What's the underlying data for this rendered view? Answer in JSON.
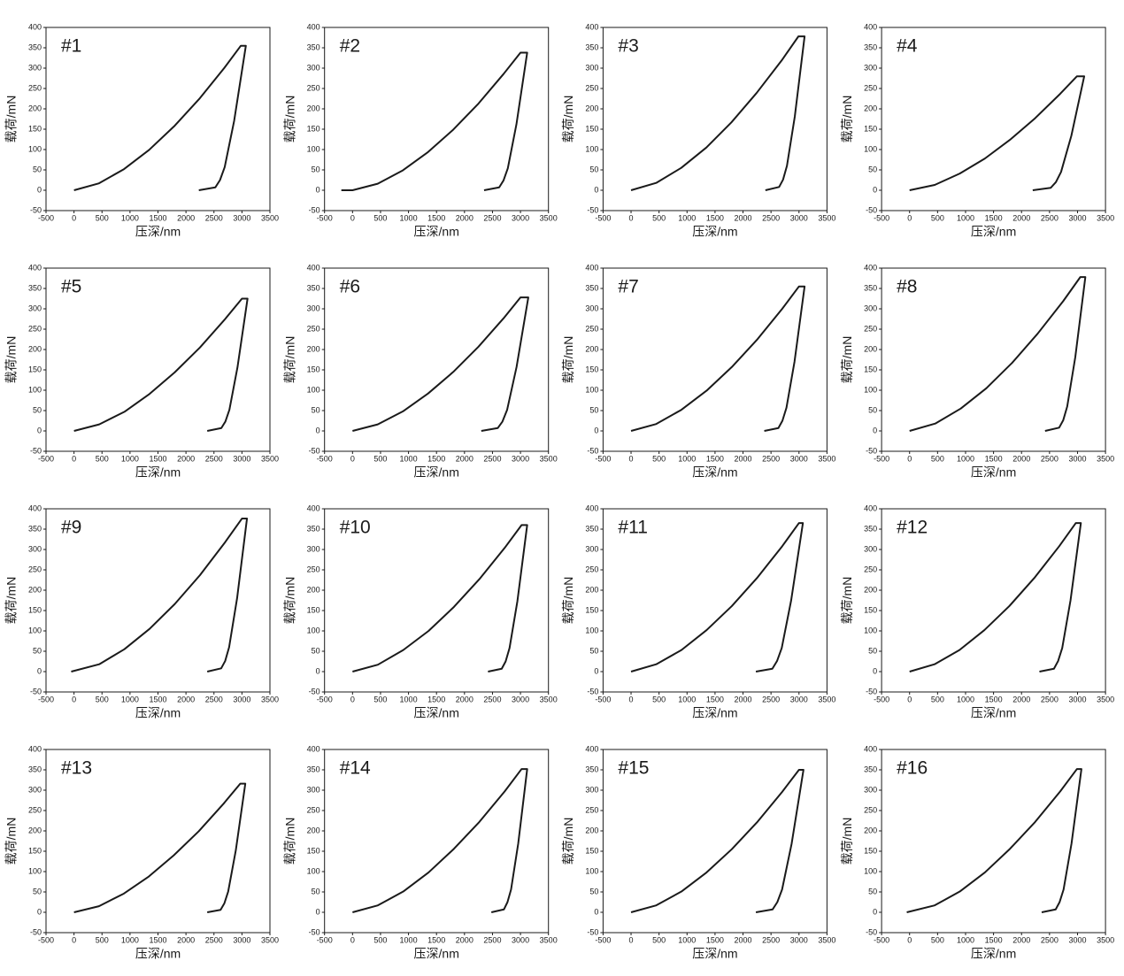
{
  "chart_data": [
    {
      "type": "line",
      "title": "#1",
      "x_label": "压深/nm",
      "y_label": "载荷/mN",
      "color": "#1a1a1a",
      "xlim": [
        -500,
        3500
      ],
      "ylim": [
        -50,
        400
      ],
      "xticks": [
        -500,
        0,
        500,
        1000,
        1500,
        2000,
        2500,
        3000,
        3500
      ],
      "yticks": [
        -50,
        0,
        50,
        100,
        150,
        200,
        250,
        300,
        350,
        400
      ],
      "x": [
        0,
        447,
        894,
        1341,
        1788,
        2235,
        2682,
        2980,
        3070,
        2860,
        2692,
        2608,
        2524,
        2230
      ],
      "values": [
        0,
        17,
        52,
        99,
        157,
        224,
        300,
        355,
        355,
        170,
        57,
        25,
        7,
        0
      ]
    },
    {
      "type": "line",
      "title": "#2",
      "x_label": "压深/nm",
      "y_label": "载荷/mN",
      "color": "#1a1a1a",
      "xlim": [
        -500,
        3500
      ],
      "ylim": [
        -50,
        400
      ],
      "xticks": [
        -500,
        0,
        500,
        1000,
        1500,
        2000,
        2500,
        3000,
        3500
      ],
      "yticks": [
        -50,
        0,
        50,
        100,
        150,
        200,
        250,
        300,
        350,
        400
      ],
      "x": [
        -200,
        0,
        450,
        900,
        1350,
        1800,
        2250,
        2700,
        3000,
        3120,
        2928,
        2774,
        2697,
        2620,
        2350
      ],
      "values": [
        0,
        0,
        16,
        49,
        94,
        149,
        213,
        286,
        338,
        338,
        162,
        54,
        24,
        7,
        0
      ]
    },
    {
      "type": "line",
      "title": "#3",
      "x_label": "压深/nm",
      "y_label": "载荷/mN",
      "color": "#1a1a1a",
      "xlim": [
        -500,
        3500
      ],
      "ylim": [
        -50,
        400
      ],
      "xticks": [
        -500,
        0,
        500,
        1000,
        1500,
        2000,
        2500,
        3000,
        3500
      ],
      "yticks": [
        -50,
        0,
        50,
        100,
        150,
        200,
        250,
        300,
        350,
        400
      ],
      "x": [
        0,
        449,
        897,
        1346,
        1794,
        2243,
        2691,
        2990,
        3100,
        2925,
        2785,
        2715,
        2645,
        2400
      ],
      "values": [
        0,
        18,
        55,
        105,
        167,
        239,
        319,
        378,
        378,
        181,
        60,
        26,
        8,
        0
      ]
    },
    {
      "type": "line",
      "title": "#4",
      "x_label": "压深/nm",
      "y_label": "载荷/mN",
      "color": "#1a1a1a",
      "xlim": [
        -500,
        3500
      ],
      "ylim": [
        -50,
        400
      ],
      "xticks": [
        -500,
        0,
        500,
        1000,
        1500,
        2000,
        2500,
        3000,
        3500
      ],
      "yticks": [
        -50,
        0,
        50,
        100,
        150,
        200,
        250,
        300,
        350,
        400
      ],
      "x": [
        0,
        449,
        897,
        1346,
        1794,
        2243,
        2691,
        2990,
        3120,
        2890,
        2706,
        2614,
        2522,
        2200
      ],
      "values": [
        0,
        13,
        41,
        78,
        124,
        177,
        237,
        280,
        280,
        134,
        45,
        20,
        6,
        0
      ]
    },
    {
      "type": "line",
      "title": "#5",
      "x_label": "压深/nm",
      "y_label": "载荷/mN",
      "color": "#1a1a1a",
      "xlim": [
        -500,
        3500
      ],
      "ylim": [
        -50,
        400
      ],
      "xticks": [
        -500,
        0,
        500,
        1000,
        1500,
        2000,
        2500,
        3000,
        3500
      ],
      "yticks": [
        -50,
        0,
        50,
        100,
        150,
        200,
        250,
        300,
        350,
        400
      ],
      "x": [
        0,
        450,
        900,
        1350,
        1800,
        2250,
        2700,
        3000,
        3100,
        2920,
        2776,
        2704,
        2632,
        2380
      ],
      "values": [
        0,
        16,
        47,
        91,
        144,
        205,
        275,
        325,
        325,
        156,
        52,
        23,
        7,
        0
      ]
    },
    {
      "type": "line",
      "title": "#6",
      "x_label": "压深/nm",
      "y_label": "载荷/mN",
      "color": "#1a1a1a",
      "xlim": [
        -500,
        3500
      ],
      "ylim": [
        -50,
        400
      ],
      "xticks": [
        -500,
        0,
        500,
        1000,
        1500,
        2000,
        2500,
        3000,
        3500
      ],
      "yticks": [
        -50,
        0,
        50,
        100,
        150,
        200,
        250,
        300,
        350,
        400
      ],
      "x": [
        0,
        450,
        900,
        1350,
        1800,
        2250,
        2700,
        3000,
        3140,
        2930,
        2762,
        2678,
        2594,
        2300
      ],
      "values": [
        0,
        16,
        48,
        92,
        145,
        207,
        277,
        328,
        328,
        157,
        52,
        23,
        7,
        0
      ]
    },
    {
      "type": "line",
      "title": "#7",
      "x_label": "压深/nm",
      "y_label": "载荷/mN",
      "color": "#1a1a1a",
      "xlim": [
        -500,
        3500
      ],
      "ylim": [
        -50,
        400
      ],
      "xticks": [
        -500,
        0,
        500,
        1000,
        1500,
        2000,
        2500,
        3000,
        3500
      ],
      "yticks": [
        -50,
        0,
        50,
        100,
        150,
        200,
        250,
        300,
        350,
        400
      ],
      "x": [
        0,
        450,
        900,
        1350,
        1800,
        2250,
        2700,
        3000,
        3100,
        2920,
        2776,
        2704,
        2632,
        2380
      ],
      "values": [
        0,
        17,
        52,
        99,
        157,
        224,
        300,
        355,
        355,
        170,
        57,
        25,
        7,
        0
      ]
    },
    {
      "type": "line",
      "title": "#8",
      "x_label": "压深/nm",
      "y_label": "载荷/mN",
      "color": "#1a1a1a",
      "xlim": [
        -500,
        3500
      ],
      "ylim": [
        -50,
        400
      ],
      "xticks": [
        -500,
        0,
        500,
        1000,
        1500,
        2000,
        2500,
        3000,
        3500
      ],
      "yticks": [
        -50,
        0,
        50,
        100,
        150,
        200,
        250,
        300,
        350,
        400
      ],
      "x": [
        0,
        458,
        915,
        1373,
        1830,
        2288,
        2745,
        3050,
        3140,
        2960,
        2816,
        2744,
        2672,
        2420
      ],
      "values": [
        0,
        18,
        55,
        105,
        167,
        239,
        319,
        378,
        378,
        181,
        60,
        26,
        8,
        0
      ]
    },
    {
      "type": "line",
      "title": "#9",
      "x_label": "压深/nm",
      "y_label": "载荷/mN",
      "color": "#1a1a1a",
      "xlim": [
        -500,
        3500
      ],
      "ylim": [
        -50,
        400
      ],
      "xticks": [
        -500,
        0,
        500,
        1000,
        1500,
        2000,
        2500,
        3000,
        3500
      ],
      "yticks": [
        -50,
        0,
        50,
        100,
        150,
        200,
        250,
        300,
        350,
        400
      ],
      "x": [
        -50,
        450,
        900,
        1350,
        1800,
        2250,
        2700,
        3000,
        3090,
        2913,
        2771,
        2700,
        2629,
        2380
      ],
      "values": [
        0,
        18,
        55,
        105,
        166,
        237,
        318,
        376,
        376,
        180,
        60,
        26,
        8,
        0
      ]
    },
    {
      "type": "line",
      "title": "#10",
      "x_label": "压深/nm",
      "y_label": "载荷/mN",
      "color": "#1a1a1a",
      "xlim": [
        -500,
        3500
      ],
      "ylim": [
        -50,
        400
      ],
      "xticks": [
        -500,
        0,
        500,
        1000,
        1500,
        2000,
        2500,
        3000,
        3500
      ],
      "yticks": [
        -50,
        0,
        50,
        100,
        150,
        200,
        250,
        300,
        350,
        400
      ],
      "x": [
        0,
        453,
        906,
        1359,
        1812,
        2265,
        2718,
        3020,
        3120,
        2945,
        2805,
        2735,
        2665,
        2420
      ],
      "values": [
        0,
        17,
        53,
        100,
        159,
        227,
        304,
        360,
        360,
        173,
        58,
        25,
        7,
        0
      ]
    },
    {
      "type": "line",
      "title": "#11",
      "x_label": "压深/nm",
      "y_label": "载荷/mN",
      "color": "#1a1a1a",
      "xlim": [
        -500,
        3500
      ],
      "ylim": [
        -50,
        400
      ],
      "xticks": [
        -500,
        0,
        500,
        1000,
        1500,
        2000,
        2500,
        3000,
        3500
      ],
      "yticks": [
        -50,
        0,
        50,
        100,
        150,
        200,
        250,
        300,
        350,
        400
      ],
      "x": [
        0,
        450,
        900,
        1350,
        1800,
        2250,
        2700,
        3000,
        3070,
        2860,
        2692,
        2608,
        2524,
        2230
      ],
      "values": [
        0,
        18,
        53,
        102,
        161,
        230,
        308,
        365,
        365,
        175,
        58,
        26,
        7,
        0
      ]
    },
    {
      "type": "line",
      "title": "#12",
      "x_label": "压深/nm",
      "y_label": "载荷/mN",
      "color": "#1a1a1a",
      "xlim": [
        -500,
        3500
      ],
      "ylim": [
        -50,
        400
      ],
      "xticks": [
        -500,
        0,
        500,
        1000,
        1500,
        2000,
        2500,
        3000,
        3500
      ],
      "yticks": [
        -50,
        0,
        50,
        100,
        150,
        200,
        250,
        300,
        350,
        400
      ],
      "x": [
        0,
        446,
        891,
        1337,
        1782,
        2228,
        2673,
        2970,
        3060,
        2875,
        2727,
        2653,
        2579,
        2320
      ],
      "values": [
        0,
        18,
        53,
        102,
        161,
        230,
        308,
        365,
        365,
        175,
        58,
        26,
        7,
        0
      ]
    },
    {
      "type": "line",
      "title": "#13",
      "x_label": "压深/nm",
      "y_label": "载荷/mN",
      "color": "#1a1a1a",
      "xlim": [
        -500,
        3500
      ],
      "ylim": [
        -50,
        400
      ],
      "xticks": [
        -500,
        0,
        500,
        1000,
        1500,
        2000,
        2500,
        3000,
        3500
      ],
      "yticks": [
        -50,
        0,
        50,
        100,
        150,
        200,
        250,
        300,
        350,
        400
      ],
      "x": [
        0,
        446,
        891,
        1337,
        1782,
        2228,
        2673,
        2970,
        3060,
        2890,
        2754,
        2686,
        2618,
        2380
      ],
      "values": [
        0,
        15,
        46,
        88,
        140,
        199,
        267,
        316,
        316,
        152,
        51,
        22,
        6,
        0
      ]
    },
    {
      "type": "line",
      "title": "#14",
      "x_label": "压深/nm",
      "y_label": "载荷/mN",
      "color": "#1a1a1a",
      "xlim": [
        -500,
        3500
      ],
      "ylim": [
        -50,
        400
      ],
      "xticks": [
        -500,
        0,
        500,
        1000,
        1500,
        2000,
        2500,
        3000,
        3500
      ],
      "yticks": [
        -50,
        0,
        50,
        100,
        150,
        200,
        250,
        300,
        350,
        400
      ],
      "x": [
        0,
        453,
        906,
        1359,
        1812,
        2265,
        2718,
        3020,
        3120,
        2960,
        2832,
        2768,
        2704,
        2480
      ],
      "values": [
        0,
        17,
        51,
        98,
        156,
        222,
        297,
        352,
        352,
        169,
        56,
        25,
        7,
        0
      ]
    },
    {
      "type": "line",
      "title": "#15",
      "x_label": "压深/nm",
      "y_label": "载荷/mN",
      "color": "#1a1a1a",
      "xlim": [
        -500,
        3500
      ],
      "ylim": [
        -50,
        400
      ],
      "xticks": [
        -500,
        0,
        500,
        1000,
        1500,
        2000,
        2500,
        3000,
        3500
      ],
      "yticks": [
        -50,
        0,
        50,
        100,
        150,
        200,
        250,
        300,
        350,
        400
      ],
      "x": [
        0,
        450,
        900,
        1350,
        1800,
        2250,
        2700,
        3000,
        3080,
        2868,
        2698,
        2613,
        2528,
        2230
      ],
      "values": [
        0,
        17,
        51,
        98,
        155,
        221,
        296,
        350,
        350,
        168,
        56,
        25,
        7,
        0
      ]
    },
    {
      "type": "line",
      "title": "#16",
      "x_label": "压深/nm",
      "y_label": "载荷/mN",
      "color": "#1a1a1a",
      "xlim": [
        -500,
        3500
      ],
      "ylim": [
        -50,
        400
      ],
      "xticks": [
        -500,
        0,
        500,
        1000,
        1500,
        2000,
        2500,
        3000,
        3500
      ],
      "yticks": [
        -50,
        0,
        50,
        100,
        150,
        200,
        250,
        300,
        350,
        400
      ],
      "x": [
        -50,
        449,
        897,
        1346,
        1794,
        2243,
        2691,
        2990,
        3070,
        2893,
        2751,
        2680,
        2610,
        2360
      ],
      "values": [
        0,
        17,
        51,
        98,
        156,
        222,
        297,
        352,
        352,
        169,
        56,
        25,
        7,
        0
      ]
    }
  ]
}
